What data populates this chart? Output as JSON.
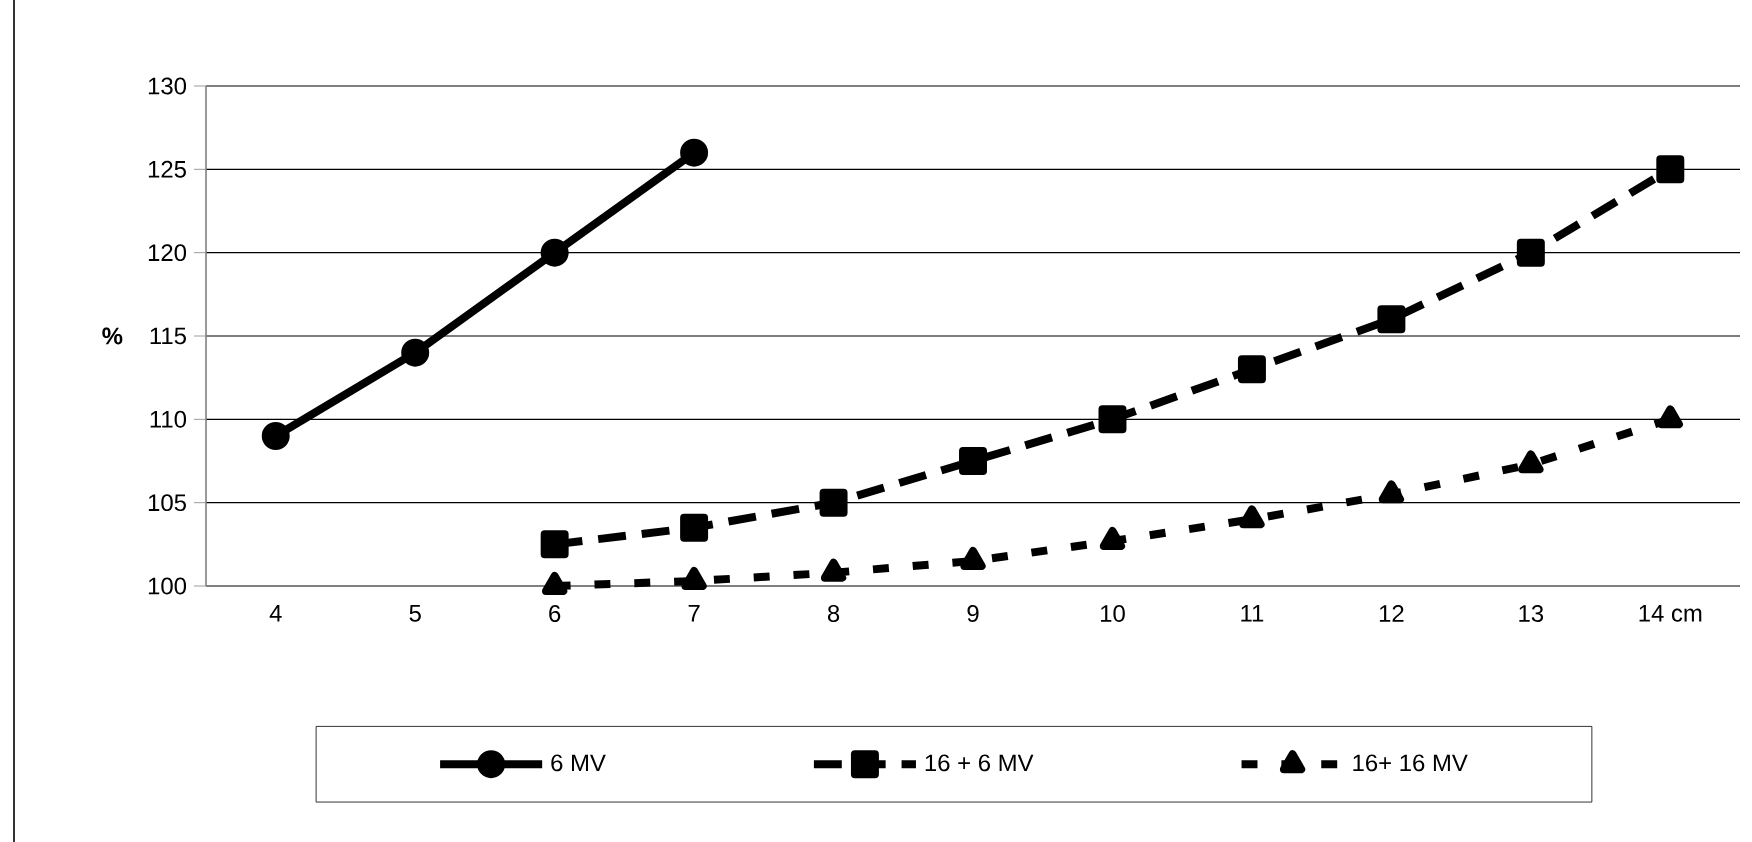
{
  "chart_data": {
    "type": "line",
    "ylabel": "%",
    "categories": [
      "4",
      "5",
      "6",
      "7",
      "8",
      "9",
      "10",
      "11",
      "12",
      "13",
      "14 cm"
    ],
    "ylim": [
      100,
      130
    ],
    "yticks": [
      100,
      105,
      110,
      115,
      120,
      125,
      130
    ],
    "grid": "y",
    "legend": "bottom",
    "series": [
      {
        "name": "6 MV",
        "color": "#000000",
        "marker": "circle",
        "line_style": "solid",
        "values": [
          109,
          114,
          120,
          126,
          null,
          null,
          null,
          null,
          null,
          null,
          null
        ]
      },
      {
        "name": "16 + 6 MV",
        "color": "#000000",
        "marker": "square",
        "line_style": "dashed",
        "values": [
          null,
          null,
          102.5,
          103.5,
          105,
          107.5,
          110,
          113,
          116,
          120,
          125
        ]
      },
      {
        "name": "16+ 16 MV",
        "color": "#000000",
        "marker": "triangle",
        "line_style": "dashed",
        "values": [
          null,
          null,
          100,
          100.3,
          100.8,
          101.5,
          102.7,
          104,
          105.5,
          107.3,
          110
        ]
      }
    ]
  }
}
